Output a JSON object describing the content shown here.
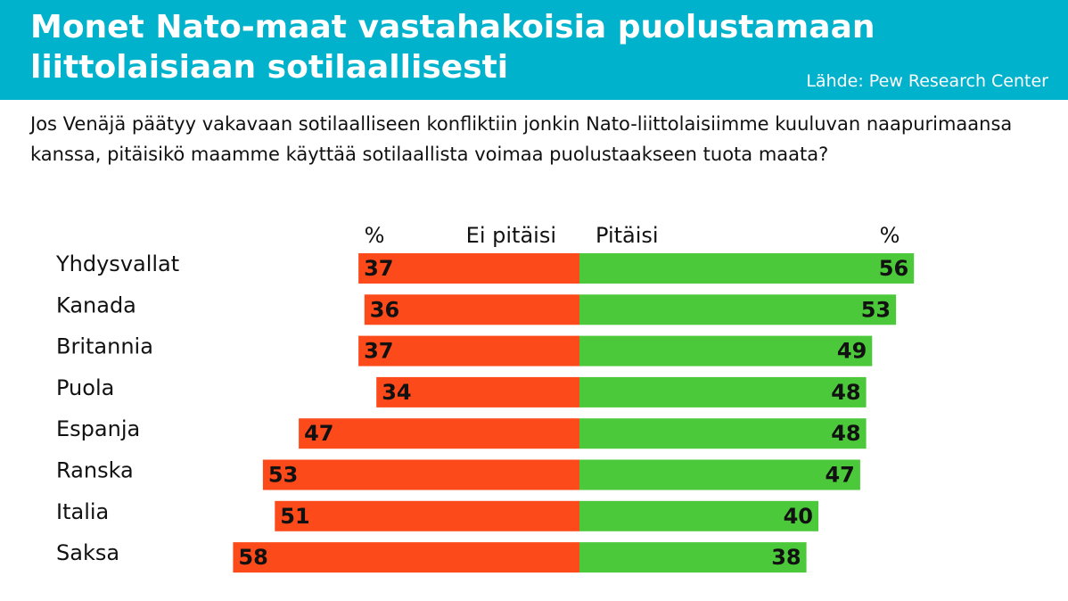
{
  "header": {
    "title": "Monet Nato-maat vastahakoisia puolustamaan liittolaisiaan sotilaallisesti",
    "source": "Lähde: Pew Research Center"
  },
  "question": "Jos Venäjä päätyy vakavaan sotilaalliseen konfliktiin jonkin Nato-liittolaisiimme kuuluvan naapurimaansa kanssa, pitäisikö maamme käyttää sotilaallista voimaa puolustaakseen tuota maata?",
  "colors": {
    "header_bg": "#00b2cc",
    "no_bar": "#fc4a1a",
    "yes_bar": "#4cc93a"
  },
  "chart_data": {
    "type": "bar",
    "orientation": "horizontal-diverging",
    "categories": [
      "Yhdysvallat",
      "Kanada",
      "Britannia",
      "Puola",
      "Espanja",
      "Ranska",
      "Italia",
      "Saksa"
    ],
    "series": [
      {
        "name": "Ei pitäisi",
        "unit": "%",
        "values": [
          37,
          36,
          37,
          34,
          47,
          53,
          51,
          58
        ]
      },
      {
        "name": "Pitäisi",
        "unit": "%",
        "values": [
          56,
          53,
          49,
          48,
          48,
          47,
          40,
          38
        ]
      }
    ],
    "left_unit_label": "%",
    "right_unit_label": "%",
    "legend": "top"
  }
}
